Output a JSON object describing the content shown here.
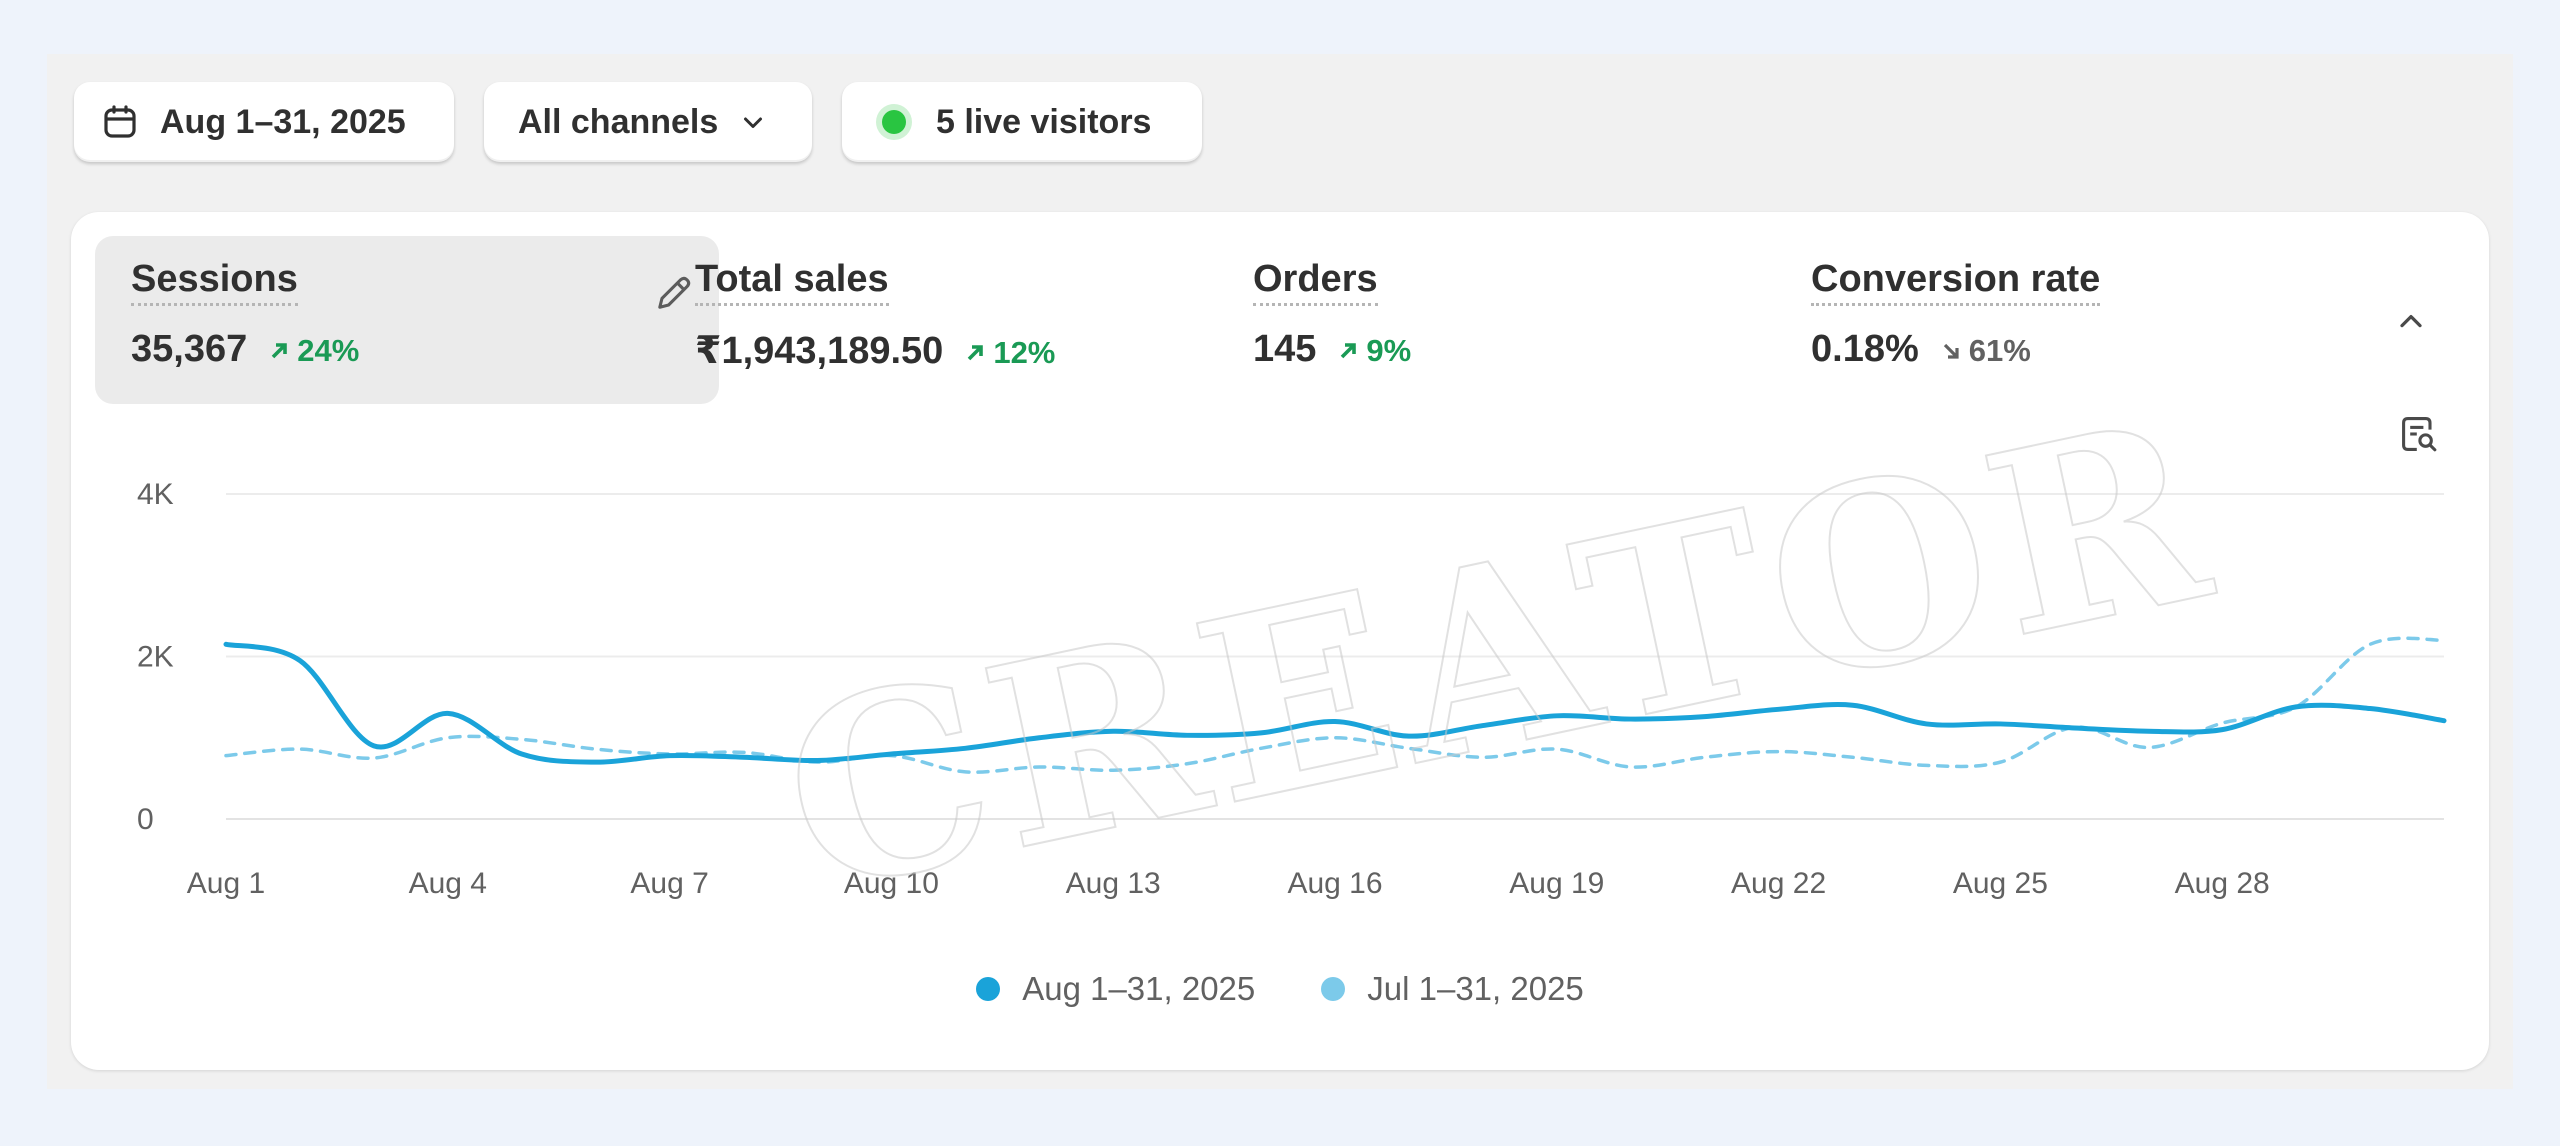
{
  "toolbar": {
    "date_range": "Aug 1–31, 2025",
    "channel": "All channels",
    "live_visitors": "5 live visitors"
  },
  "metrics": [
    {
      "label": "Sessions",
      "value": "35,367",
      "change": "24%",
      "direction": "up"
    },
    {
      "label": "Total sales",
      "value": "₹1,943,189.50",
      "change": "12%",
      "direction": "up"
    },
    {
      "label": "Orders",
      "value": "145",
      "change": "9%",
      "direction": "up"
    },
    {
      "label": "Conversion rate",
      "value": "0.18%",
      "change": "61%",
      "direction": "down"
    }
  ],
  "watermark": "CREATOR",
  "icons": {
    "date": "calendar-icon",
    "dropdown": "chevron-down-icon",
    "live": "live-status-dot",
    "edit": "pencil-icon",
    "collapse": "chevron-up-icon",
    "insights": "report-search-icon"
  },
  "colors": {
    "current_series": "#1aa3d9",
    "previous_series": "#7ccaea",
    "live": "#29c541",
    "positive": "#1a9a55"
  },
  "chart_data": {
    "type": "line",
    "x": [
      "Aug 1",
      "Aug 2",
      "Aug 3",
      "Aug 4",
      "Aug 5",
      "Aug 6",
      "Aug 7",
      "Aug 8",
      "Aug 9",
      "Aug 10",
      "Aug 11",
      "Aug 12",
      "Aug 13",
      "Aug 14",
      "Aug 15",
      "Aug 16",
      "Aug 17",
      "Aug 18",
      "Aug 19",
      "Aug 20",
      "Aug 21",
      "Aug 22",
      "Aug 23",
      "Aug 24",
      "Aug 25",
      "Aug 26",
      "Aug 27",
      "Aug 28",
      "Aug 29",
      "Aug 30",
      "Aug 31"
    ],
    "x_tick_labels": [
      "Aug 1",
      "Aug 4",
      "Aug 7",
      "Aug 10",
      "Aug 13",
      "Aug 16",
      "Aug 19",
      "Aug 22",
      "Aug 25",
      "Aug 28"
    ],
    "y_tick_labels": [
      "4K",
      "2K",
      "0"
    ],
    "ylim": [
      0,
      4000
    ],
    "grid": true,
    "legend_position": "bottom-center",
    "series": [
      {
        "name": "Aug 1–31, 2025",
        "style": "solid",
        "values": [
          2150,
          1950,
          900,
          1300,
          800,
          700,
          780,
          760,
          720,
          800,
          870,
          1000,
          1080,
          1030,
          1060,
          1200,
          1020,
          1150,
          1270,
          1230,
          1260,
          1350,
          1400,
          1170,
          1170,
          1120,
          1080,
          1100,
          1380,
          1360,
          1210
        ]
      },
      {
        "name": "Jul 1–31, 2025",
        "style": "dashed",
        "values": [
          780,
          860,
          750,
          1000,
          980,
          860,
          800,
          820,
          700,
          780,
          580,
          640,
          600,
          680,
          870,
          1000,
          870,
          760,
          860,
          640,
          760,
          830,
          760,
          660,
          700,
          1130,
          880,
          1180,
          1380,
          2150,
          2200
        ]
      }
    ]
  }
}
